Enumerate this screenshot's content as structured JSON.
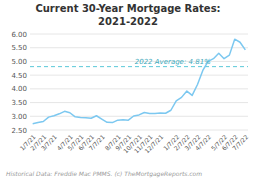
{
  "chart_data": {
    "type": "line",
    "title": "Current 30-Year Mortgage Rates:",
    "subtitle": "2021-2022",
    "categories": [
      "1/7/21",
      null,
      "2/7/21",
      null,
      "3/7/21",
      null,
      null,
      "4/7/21",
      null,
      "5/7/21",
      null,
      "6/7/21",
      null,
      "7/7/21",
      null,
      null,
      "8/7/21",
      null,
      "9/7/21",
      null,
      "10/7/21",
      null,
      "11/7/21",
      null,
      "12/7/21",
      null,
      null,
      "1/7/22",
      null,
      "2/7/22",
      null,
      "3/7/22",
      null,
      "4/7/22",
      null,
      null,
      "5/7/22",
      null,
      "6/7/22",
      null,
      "7/7/22"
    ],
    "values": [
      2.73,
      2.77,
      2.81,
      2.97,
      3.02,
      3.09,
      3.18,
      3.13,
      2.98,
      2.96,
      2.95,
      2.93,
      3.02,
      2.9,
      2.78,
      2.77,
      2.86,
      2.87,
      2.86,
      3.01,
      3.05,
      3.14,
      3.1,
      3.1,
      3.12,
      3.11,
      3.22,
      3.56,
      3.69,
      3.92,
      3.76,
      4.16,
      4.67,
      5.0,
      5.1,
      5.3,
      5.1,
      5.23,
      5.81,
      5.7,
      5.42
    ],
    "color": "#7cc8f0",
    "ylim": [
      2.5,
      6.0
    ],
    "yticks": [
      {
        "value": 2.5,
        "label": "2.50"
      },
      {
        "value": 3,
        "label": "3.00"
      },
      {
        "value": 3.5,
        "label": "3.50"
      },
      {
        "value": 4,
        "label": "4.00"
      },
      {
        "value": 4.5,
        "label": "4.50"
      },
      {
        "value": 5,
        "label": "5.00"
      },
      {
        "value": 5.5,
        "label": "5.50"
      },
      {
        "value": 6,
        "label": "6.00"
      }
    ],
    "grid": true,
    "annotations": [
      {
        "text": "2022 Average: 4.81%",
        "value": 4.81
      },
      {
        "text": "Historical Data: Freddie Mac PMMS. (c) TheMortgageReports.com"
      }
    ]
  }
}
